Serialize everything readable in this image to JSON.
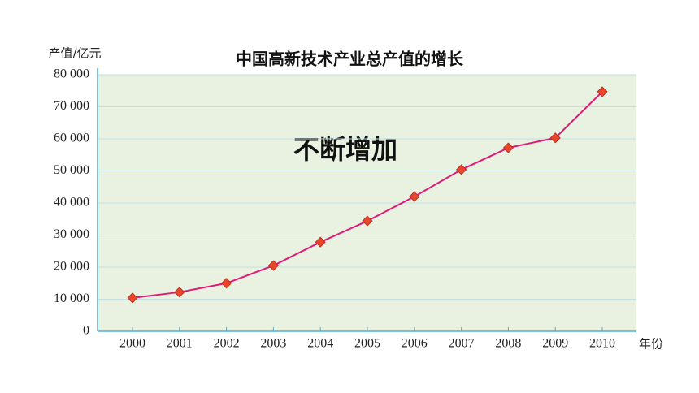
{
  "chart_data": {
    "type": "line",
    "title": "中国高新技术产业总产值的增长",
    "y_label": "产值/亿元",
    "x_label": "年份",
    "annotation": "不断增加",
    "categories": [
      "2000",
      "2001",
      "2002",
      "2003",
      "2004",
      "2005",
      "2006",
      "2007",
      "2008",
      "2009",
      "2010"
    ],
    "series": [
      {
        "name": "产值",
        "color": "#e0197a",
        "marker_color": "#e8452c",
        "values": [
          10400,
          12200,
          15000,
          20500,
          27800,
          34400,
          42000,
          50400,
          57200,
          60300,
          74700
        ]
      }
    ],
    "ylim": [
      0,
      80000
    ],
    "yticks": [
      0,
      {
        "value": 10000,
        "label": "10 000"
      },
      {
        "value": 20000,
        "label": "20 000"
      },
      {
        "value": 30000,
        "label": "30 000"
      },
      {
        "value": 40000,
        "label": "40 000"
      },
      {
        "value": 50000,
        "label": "50 000"
      },
      {
        "value": 60000,
        "label": "60 000"
      },
      {
        "value": 70000,
        "label": "70 000"
      },
      {
        "value": 80000,
        "label": "80 000"
      }
    ],
    "grid": true
  }
}
